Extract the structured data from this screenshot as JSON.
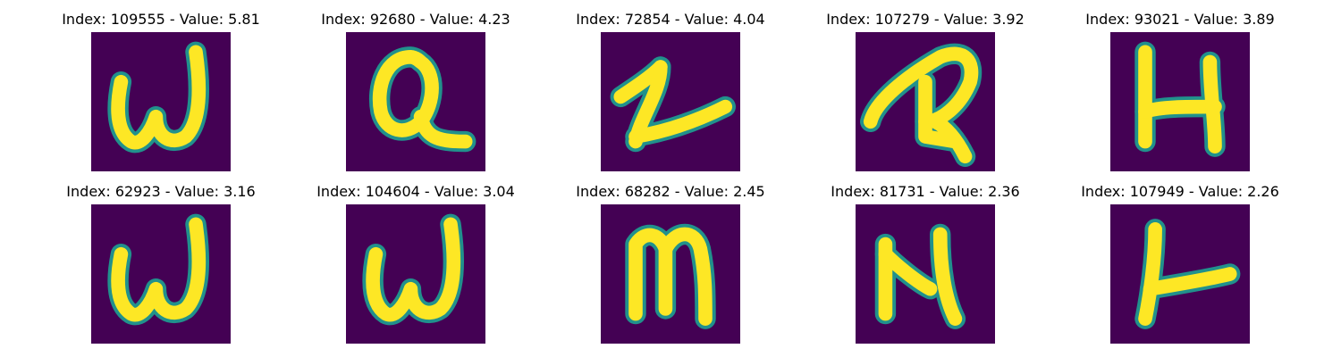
{
  "colors": {
    "background": "#440154",
    "edge": "#21918c",
    "stroke": "#fde725"
  },
  "panels": [
    {
      "title": "Index: 109555 - Value: 5.81",
      "glyph": "handwritten-w-like"
    },
    {
      "title": "Index: 92680 - Value: 4.23",
      "glyph": "handwritten-a-like"
    },
    {
      "title": "Index: 72854 - Value: 4.04",
      "glyph": "handwritten-1-like"
    },
    {
      "title": "Index: 107279 - Value: 3.92",
      "glyph": "handwritten-r-like"
    },
    {
      "title": "Index: 93021 - Value: 3.89",
      "glyph": "handwritten-h-like"
    },
    {
      "title": "Index: 62923 - Value: 3.16",
      "glyph": "handwritten-w-like"
    },
    {
      "title": "Index: 104604 - Value: 3.04",
      "glyph": "handwritten-w-like"
    },
    {
      "title": "Index: 68282 - Value: 2.45",
      "glyph": "handwritten-m-like"
    },
    {
      "title": "Index: 81731 - Value: 2.36",
      "glyph": "handwritten-n-like"
    },
    {
      "title": "Index: 107949 - Value: 2.26",
      "glyph": "handwritten-y-like"
    }
  ]
}
